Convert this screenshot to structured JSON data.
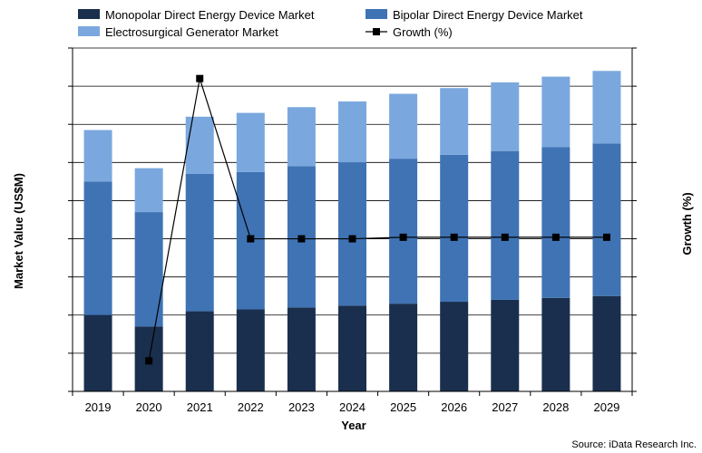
{
  "chart_data": {
    "type": "bar",
    "stacked": true,
    "title": "",
    "xlabel": "Year",
    "ylabel": "Market Value (US$M)",
    "y2label": "Growth (%)",
    "categories": [
      "2019",
      "2020",
      "2021",
      "2022",
      "2023",
      "2024",
      "2025",
      "2026",
      "2027",
      "2028",
      "2029"
    ],
    "ylim": [
      0,
      9
    ],
    "y2lim": [
      -15,
      30
    ],
    "grid": true,
    "legend_position": "top",
    "series": [
      {
        "name": "Monopolar Direct Energy Device  Market",
        "kind": "bar",
        "color": "#1a2f4e",
        "values": [
          2.0,
          1.7,
          2.1,
          2.15,
          2.2,
          2.25,
          2.3,
          2.35,
          2.4,
          2.45,
          2.5
        ]
      },
      {
        "name": "Bipolar Direct Energy Device  Market",
        "kind": "bar",
        "color": "#3f73b4",
        "values": [
          3.5,
          3.0,
          3.6,
          3.6,
          3.7,
          3.75,
          3.8,
          3.85,
          3.9,
          3.95,
          4.0
        ]
      },
      {
        "name": "Electrosurgical Generator  Market",
        "kind": "bar",
        "color": "#7aa8de",
        "values": [
          1.35,
          1.15,
          1.5,
          1.55,
          1.55,
          1.6,
          1.7,
          1.75,
          1.8,
          1.85,
          1.9
        ]
      },
      {
        "name": "Growth (%)",
        "kind": "line",
        "color": "#000000",
        "values": [
          null,
          -11,
          26,
          5,
          5,
          5,
          5.2,
          5.2,
          5.2,
          5.2,
          5.2
        ]
      }
    ],
    "source": "Source: iData Research Inc."
  }
}
